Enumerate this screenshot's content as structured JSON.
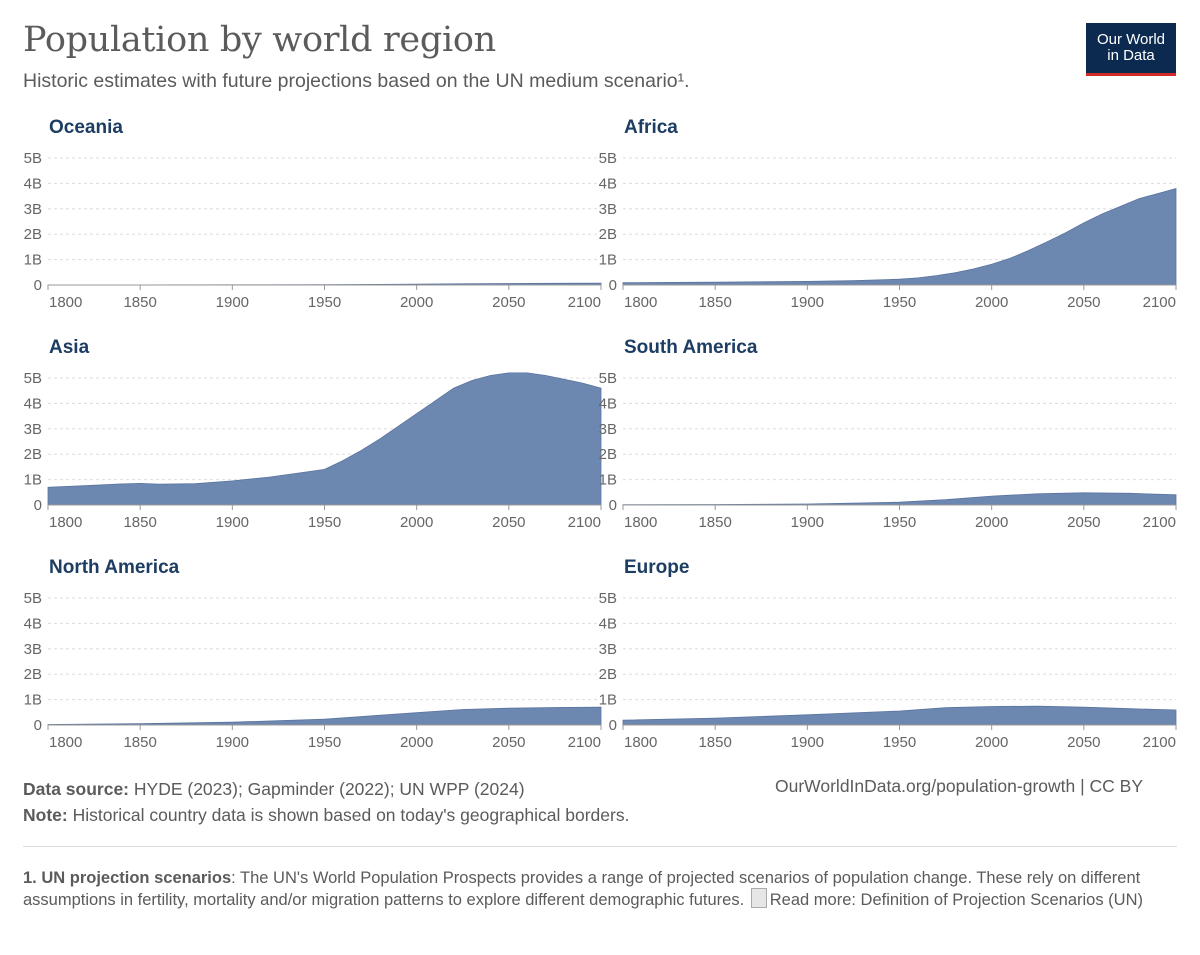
{
  "header": {
    "title": "Population by world region",
    "subtitle": "Historic estimates with future projections based on the UN medium scenario¹."
  },
  "logo": {
    "line1": "Our World",
    "line2": "in Data"
  },
  "colors": {
    "area": "#6d88b0",
    "stroke": "#5a74a0",
    "panel_title": "#1d3d63",
    "grid": "#dddddd",
    "logo_bg": "#0c2a50",
    "logo_accent": "#d42a2a"
  },
  "chart_data": [
    {
      "type": "area",
      "title": "Oceania",
      "x": [
        1800,
        1850,
        1900,
        1950,
        2000,
        2025,
        2050,
        2075,
        2100
      ],
      "values": [
        0.002,
        0.002,
        0.006,
        0.013,
        0.031,
        0.046,
        0.058,
        0.066,
        0.07
      ],
      "ylim": [
        0,
        5
      ],
      "xlim": [
        1800,
        2100
      ],
      "yticks": [
        0,
        1,
        2,
        3,
        4,
        5
      ],
      "ytick_labels": [
        "0",
        "1B",
        "2B",
        "3B",
        "4B",
        "5B"
      ],
      "xticks": [
        1800,
        1850,
        1900,
        1950,
        2000,
        2050,
        2100
      ],
      "xtick_labels": [
        "1800",
        "1850",
        "1900",
        "1950",
        "2000",
        "2050",
        "2100"
      ]
    },
    {
      "type": "area",
      "title": "Africa",
      "x": [
        1800,
        1850,
        1900,
        1925,
        1950,
        1960,
        1970,
        1980,
        1990,
        2000,
        2010,
        2020,
        2030,
        2040,
        2050,
        2060,
        2070,
        2080,
        2090,
        2100
      ],
      "values": [
        0.09,
        0.11,
        0.14,
        0.17,
        0.23,
        0.28,
        0.37,
        0.48,
        0.63,
        0.82,
        1.05,
        1.36,
        1.7,
        2.05,
        2.45,
        2.8,
        3.1,
        3.4,
        3.6,
        3.8
      ],
      "ylim": [
        0,
        5
      ],
      "xlim": [
        1800,
        2100
      ],
      "yticks": [
        0,
        1,
        2,
        3,
        4,
        5
      ],
      "ytick_labels": [
        "0",
        "1B",
        "2B",
        "3B",
        "4B",
        "5B"
      ],
      "xticks": [
        1800,
        1850,
        1900,
        1950,
        2000,
        2050,
        2100
      ],
      "xtick_labels": [
        "1800",
        "1850",
        "1900",
        "1950",
        "2000",
        "2050",
        "2100"
      ]
    },
    {
      "type": "area",
      "title": "Asia",
      "x": [
        1800,
        1820,
        1840,
        1850,
        1860,
        1880,
        1900,
        1920,
        1940,
        1950,
        1960,
        1970,
        1980,
        1990,
        2000,
        2010,
        2020,
        2030,
        2040,
        2050,
        2060,
        2070,
        2080,
        2090,
        2100
      ],
      "values": [
        0.7,
        0.76,
        0.83,
        0.85,
        0.82,
        0.84,
        0.95,
        1.1,
        1.3,
        1.4,
        1.75,
        2.15,
        2.6,
        3.1,
        3.6,
        4.1,
        4.6,
        4.9,
        5.1,
        5.2,
        5.2,
        5.1,
        4.95,
        4.8,
        4.6
      ],
      "ylim": [
        0,
        5
      ],
      "xlim": [
        1800,
        2100
      ],
      "yticks": [
        0,
        1,
        2,
        3,
        4,
        5
      ],
      "ytick_labels": [
        "0",
        "1B",
        "2B",
        "3B",
        "4B",
        "5B"
      ],
      "xticks": [
        1800,
        1850,
        1900,
        1950,
        2000,
        2050,
        2100
      ],
      "xtick_labels": [
        "1800",
        "1850",
        "1900",
        "1950",
        "2000",
        "2050",
        "2100"
      ]
    },
    {
      "type": "area",
      "title": "South America",
      "x": [
        1800,
        1850,
        1900,
        1950,
        1975,
        2000,
        2025,
        2050,
        2075,
        2100
      ],
      "values": [
        0.01,
        0.02,
        0.04,
        0.11,
        0.21,
        0.35,
        0.44,
        0.48,
        0.46,
        0.4
      ],
      "ylim": [
        0,
        5
      ],
      "xlim": [
        1800,
        2100
      ],
      "yticks": [
        0,
        1,
        2,
        3,
        4,
        5
      ],
      "ytick_labels": [
        "0",
        "1B",
        "2B",
        "3B",
        "4B",
        "5B"
      ],
      "xticks": [
        1800,
        1850,
        1900,
        1950,
        2000,
        2050,
        2100
      ],
      "xtick_labels": [
        "1800",
        "1850",
        "1900",
        "1950",
        "2000",
        "2050",
        "2100"
      ]
    },
    {
      "type": "area",
      "title": "North America",
      "x": [
        1800,
        1850,
        1900,
        1950,
        1975,
        2000,
        2025,
        2050,
        2075,
        2100
      ],
      "values": [
        0.02,
        0.05,
        0.11,
        0.23,
        0.36,
        0.49,
        0.61,
        0.66,
        0.69,
        0.7
      ],
      "ylim": [
        0,
        5
      ],
      "xlim": [
        1800,
        2100
      ],
      "yticks": [
        0,
        1,
        2,
        3,
        4,
        5
      ],
      "ytick_labels": [
        "0",
        "1B",
        "2B",
        "3B",
        "4B",
        "5B"
      ],
      "xticks": [
        1800,
        1850,
        1900,
        1950,
        2000,
        2050,
        2100
      ],
      "xtick_labels": [
        "1800",
        "1850",
        "1900",
        "1950",
        "2000",
        "2050",
        "2100"
      ]
    },
    {
      "type": "area",
      "title": "Europe",
      "x": [
        1800,
        1850,
        1900,
        1950,
        1975,
        2000,
        2025,
        2050,
        2075,
        2100
      ],
      "values": [
        0.19,
        0.27,
        0.4,
        0.55,
        0.68,
        0.73,
        0.74,
        0.7,
        0.64,
        0.59
      ],
      "ylim": [
        0,
        5
      ],
      "xlim": [
        1800,
        2100
      ],
      "yticks": [
        0,
        1,
        2,
        3,
        4,
        5
      ],
      "ytick_labels": [
        "0",
        "1B",
        "2B",
        "3B",
        "4B",
        "5B"
      ],
      "xticks": [
        1800,
        1850,
        1900,
        1950,
        2000,
        2050,
        2100
      ],
      "xtick_labels": [
        "1800",
        "1850",
        "1900",
        "1950",
        "2000",
        "2050",
        "2100"
      ]
    }
  ],
  "footer": {
    "source_label": "Data source:",
    "source_text": "HYDE (2023); Gapminder (2022); UN WPP (2024)",
    "note_label": "Note:",
    "note_text": "Historical country data is shown based on today's geographical borders.",
    "url_text": "OurWorldInData.org/population-growth",
    "license": "| CC BY"
  },
  "footnote": {
    "label": "1. UN projection scenarios",
    "text": ": The UN's World Population Prospects provides a range of projected scenarios of population change. These rely on different assumptions in fertility, mortality and/or migration patterns to explore different demographic futures.",
    "link_text": "Read more: Definition of Projection Scenarios (UN)"
  }
}
